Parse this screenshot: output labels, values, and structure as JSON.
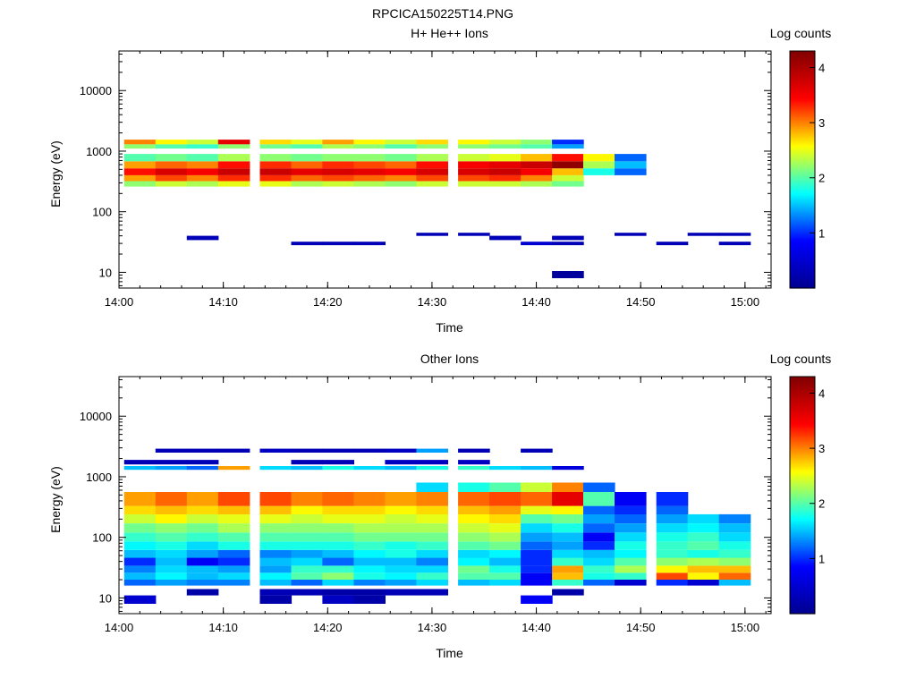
{
  "figure_title": "RPCICA150225T14.PNG",
  "chart_data": [
    {
      "type": "heatmap",
      "title": "H+ He++ Ions",
      "xlabel": "Time",
      "ylabel": "Energy (eV)",
      "colorbar_label": "Log counts",
      "y_scale": "log",
      "ylim": [
        5.5,
        45000
      ],
      "xlim": [
        "14:00",
        "15:02:30"
      ],
      "x_ticks": [
        "14:00",
        "14:10",
        "14:20",
        "14:30",
        "14:40",
        "14:50",
        "15:00"
      ],
      "y_ticks": [
        "10",
        "100",
        "1000",
        "10000"
      ],
      "colorbar_range": [
        0,
        4.3
      ],
      "colorbar_ticks": [
        "1",
        "2",
        "3",
        "4"
      ],
      "colormap": [
        "#00008f",
        "#0000ff",
        "#00ffff",
        "#ffff00",
        "#ff0000",
        "#800000"
      ],
      "time_bins": [
        "14:02",
        "14:05",
        "14:08",
        "14:11",
        "14:15",
        "14:18",
        "14:21",
        "14:24",
        "14:27",
        "14:30",
        "14:34",
        "14:37",
        "14:40",
        "14:43",
        "14:46",
        "14:49",
        "14:53",
        "14:56",
        "14:59"
      ],
      "bands": [
        {
          "lo": 260,
          "hi": 320,
          "z": [
            2.2,
            2.4,
            2.3,
            2.5,
            2.5,
            2.3,
            2.4,
            2.3,
            2.2,
            2.4,
            2.4,
            2.4,
            2.3,
            2.1,
            null,
            null,
            null,
            null,
            null
          ]
        },
        {
          "lo": 320,
          "hi": 400,
          "z": [
            2.9,
            3.2,
            3.0,
            3.3,
            3.3,
            3.1,
            3.2,
            3.1,
            3.0,
            3.2,
            3.2,
            3.3,
            3.0,
            2.4,
            null,
            null,
            null,
            null,
            null
          ]
        },
        {
          "lo": 400,
          "hi": 520,
          "z": [
            3.4,
            3.7,
            3.5,
            3.8,
            3.8,
            3.6,
            3.7,
            3.6,
            3.5,
            3.7,
            3.7,
            3.8,
            3.5,
            2.8,
            1.8,
            1.2,
            null,
            null,
            null
          ]
        },
        {
          "lo": 520,
          "hi": 680,
          "z": [
            2.9,
            3.1,
            3.0,
            3.4,
            3.3,
            3.1,
            3.3,
            3.2,
            3.1,
            3.4,
            3.5,
            3.6,
            3.8,
            4.2,
            2.3,
            1.5,
            null,
            null,
            null
          ]
        },
        {
          "lo": 680,
          "hi": 900,
          "z": [
            2.0,
            2.1,
            2.0,
            2.3,
            2.2,
            2.1,
            2.2,
            2.2,
            2.1,
            2.3,
            2.4,
            2.5,
            2.8,
            3.4,
            2.6,
            1.2,
            null,
            null,
            null
          ]
        },
        {
          "lo": 1100,
          "hi": 1300,
          "z": [
            2.2,
            2.0,
            1.9,
            2.2,
            2.1,
            2.0,
            2.3,
            2.2,
            2.0,
            2.2,
            2.2,
            2.1,
            2.0,
            1.4,
            null,
            null,
            null,
            null,
            null
          ]
        },
        {
          "lo": 1300,
          "hi": 1550,
          "z": [
            3.0,
            2.6,
            2.4,
            3.6,
            2.7,
            2.5,
            2.9,
            2.6,
            2.4,
            2.7,
            2.6,
            2.4,
            2.2,
            1.0,
            null,
            null,
            null,
            null,
            null
          ]
        },
        {
          "lo": 8,
          "hi": 10.5,
          "z": [
            null,
            null,
            null,
            null,
            null,
            null,
            null,
            null,
            null,
            null,
            null,
            null,
            null,
            0.1,
            null,
            null,
            null,
            null,
            null
          ]
        }
      ],
      "scatter_counts": [
        {
          "lo": 34,
          "hi": 40,
          "z": [
            null,
            null,
            0.3,
            null,
            null,
            null,
            null,
            null,
            null,
            null,
            null,
            0.3,
            null,
            0.3,
            null,
            null,
            null,
            null,
            null
          ]
        },
        {
          "lo": 28,
          "hi": 32,
          "z": [
            null,
            null,
            null,
            null,
            null,
            0.3,
            0.3,
            0.3,
            null,
            null,
            null,
            null,
            0.5,
            0.3,
            null,
            null,
            0.3,
            null,
            0.3
          ]
        },
        {
          "lo": 40,
          "hi": 45,
          "z": [
            null,
            null,
            null,
            null,
            null,
            null,
            null,
            null,
            null,
            0.3,
            0.3,
            null,
            null,
            null,
            null,
            0.3,
            null,
            0.3,
            0.3
          ]
        }
      ]
    },
    {
      "type": "heatmap",
      "title": "Other Ions",
      "xlabel": "Time",
      "ylabel": "Energy (eV)",
      "colorbar_label": "Log counts",
      "y_scale": "log",
      "ylim": [
        5.5,
        45000
      ],
      "xlim": [
        "14:00",
        "15:02:30"
      ],
      "x_ticks": [
        "14:00",
        "14:10",
        "14:20",
        "14:30",
        "14:40",
        "14:50",
        "15:00"
      ],
      "y_ticks": [
        "10",
        "100",
        "1000",
        "10000"
      ],
      "colorbar_range": [
        0,
        4.3
      ],
      "colorbar_ticks": [
        "1",
        "2",
        "3",
        "4"
      ],
      "colormap": [
        "#00008f",
        "#0000ff",
        "#00ffff",
        "#ffff00",
        "#ff0000",
        "#800000"
      ],
      "time_bins": [
        "14:02",
        "14:05",
        "14:08",
        "14:11",
        "14:15",
        "14:18",
        "14:21",
        "14:24",
        "14:27",
        "14:30",
        "14:34",
        "14:37",
        "14:40",
        "14:43",
        "14:46",
        "14:49",
        "14:53",
        "14:56",
        "14:59"
      ],
      "bands": [
        {
          "lo": 16,
          "hi": 20,
          "z": [
            1.2,
            1.4,
            1.3,
            1.3,
            1.5,
            1.2,
            1.6,
            1.3,
            1.4,
            1.6,
            1.5,
            1.6,
            0.8,
            1.9,
            1.2,
            0.5,
            1.0,
            0.5,
            1.5
          ]
        },
        {
          "lo": 20,
          "hi": 26,
          "z": [
            1.5,
            1.7,
            1.5,
            1.6,
            1.7,
            2.0,
            2.2,
            1.8,
            1.7,
            1.9,
            2.0,
            2.0,
            0.8,
            2.8,
            1.8,
            1.9,
            3.2,
            2.6,
            3.1
          ]
        },
        {
          "lo": 26,
          "hi": 34,
          "z": [
            1.3,
            1.6,
            1.5,
            1.4,
            1.4,
            1.9,
            1.9,
            1.7,
            1.6,
            1.6,
            2.1,
            1.8,
            1.0,
            2.9,
            1.9,
            2.3,
            2.6,
            2.8,
            2.8
          ]
        },
        {
          "lo": 34,
          "hi": 46,
          "z": [
            1.0,
            1.5,
            0.8,
            1.0,
            1.5,
            1.6,
            1.2,
            1.5,
            1.5,
            1.3,
            1.7,
            1.5,
            1.0,
            1.9,
            1.6,
            2.0,
            2.2,
            2.3,
            2.2
          ]
        },
        {
          "lo": 46,
          "hi": 62,
          "z": [
            1.5,
            1.6,
            1.4,
            1.2,
            1.3,
            1.4,
            1.5,
            1.7,
            1.8,
            1.6,
            1.6,
            1.7,
            1.0,
            1.6,
            1.5,
            1.7,
            1.9,
            1.8,
            1.9
          ]
        },
        {
          "lo": 62,
          "hi": 85,
          "z": [
            1.7,
            1.8,
            1.6,
            1.8,
            1.8,
            1.8,
            1.8,
            1.9,
            1.8,
            1.9,
            2.0,
            2.1,
            1.2,
            1.4,
            1.0,
            1.8,
            1.9,
            2.0,
            1.8
          ]
        },
        {
          "lo": 85,
          "hi": 120,
          "z": [
            1.9,
            2.0,
            1.9,
            2.0,
            2.0,
            2.0,
            2.0,
            2.1,
            2.1,
            2.1,
            2.2,
            2.3,
            1.4,
            1.5,
            0.8,
            1.6,
            1.8,
            1.9,
            1.6
          ]
        },
        {
          "lo": 120,
          "hi": 170,
          "z": [
            2.1,
            2.2,
            2.1,
            2.3,
            2.2,
            2.2,
            2.2,
            2.3,
            2.3,
            2.3,
            2.4,
            2.5,
            1.6,
            1.8,
            1.2,
            1.4,
            1.6,
            1.7,
            1.5
          ]
        },
        {
          "lo": 170,
          "hi": 240,
          "z": [
            2.4,
            2.6,
            2.4,
            2.5,
            2.5,
            2.4,
            2.5,
            2.5,
            2.4,
            2.5,
            2.6,
            2.7,
            2.0,
            2.1,
            1.4,
            1.2,
            1.4,
            1.6,
            1.3
          ]
        },
        {
          "lo": 240,
          "hi": 330,
          "z": [
            2.7,
            2.8,
            2.7,
            2.8,
            2.8,
            2.6,
            2.7,
            2.7,
            2.6,
            2.7,
            2.8,
            2.9,
            2.5,
            2.6,
            1.2,
            1.0,
            1.2,
            null,
            null
          ]
        },
        {
          "lo": 330,
          "hi": 560,
          "z": [
            2.9,
            3.1,
            2.9,
            3.2,
            3.2,
            3.0,
            3.1,
            3.0,
            2.9,
            3.0,
            3.1,
            3.2,
            3.1,
            3.6,
            2.0,
            0.8,
            1.0,
            null,
            null
          ]
        },
        {
          "lo": 560,
          "hi": 800,
          "z": [
            null,
            null,
            null,
            null,
            null,
            null,
            null,
            null,
            null,
            1.6,
            1.8,
            2.0,
            2.4,
            3.0,
            1.2,
            null,
            null,
            null,
            null
          ]
        },
        {
          "lo": 1300,
          "hi": 1500,
          "z": [
            1.5,
            1.4,
            1.2,
            2.9,
            1.6,
            1.5,
            1.8,
            1.6,
            1.5,
            1.8,
            1.9,
            1.6,
            1.5,
            0.6,
            null,
            null,
            null,
            null,
            null
          ]
        },
        {
          "lo": 8,
          "hi": 11,
          "z": [
            0.5,
            null,
            null,
            null,
            0.2,
            null,
            0.4,
            0.2,
            null,
            null,
            null,
            null,
            0.8,
            null,
            null,
            null,
            null,
            null,
            null
          ]
        }
      ],
      "scatter_counts": [
        {
          "lo": 11,
          "hi": 14,
          "z": [
            null,
            null,
            0.2,
            null,
            0.3,
            0.3,
            0.2,
            0.2,
            0.3,
            0.3,
            null,
            null,
            null,
            0.2,
            null,
            null,
            null,
            null,
            null
          ]
        },
        {
          "lo": 1600,
          "hi": 1900,
          "z": [
            0.3,
            0.3,
            0.3,
            null,
            null,
            0.3,
            0.3,
            null,
            0.4,
            0.4,
            0.4,
            null,
            null,
            null,
            null,
            null,
            null,
            null,
            null
          ]
        },
        {
          "lo": 2500,
          "hi": 2900,
          "z": [
            null,
            0.3,
            0.3,
            0.3,
            0.4,
            0.3,
            0.3,
            0.3,
            0.4,
            1.4,
            0.3,
            null,
            0.3,
            null,
            null,
            null,
            null,
            null,
            null
          ]
        }
      ]
    }
  ]
}
